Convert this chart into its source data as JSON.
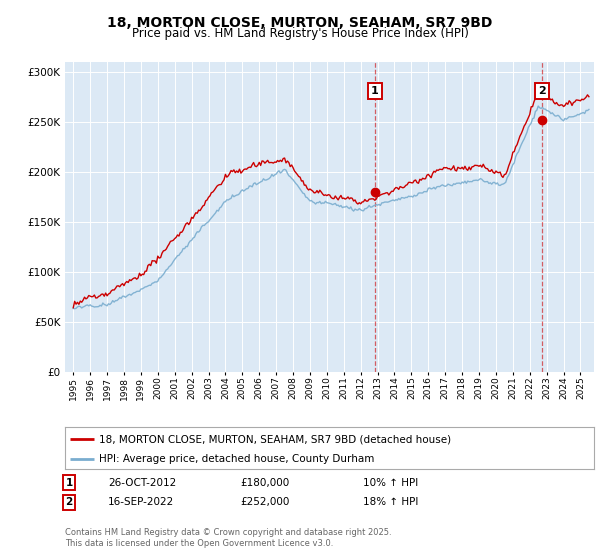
{
  "title": "18, MORTON CLOSE, MURTON, SEAHAM, SR7 9BD",
  "subtitle": "Price paid vs. HM Land Registry's House Price Index (HPI)",
  "legend_line1": "18, MORTON CLOSE, MURTON, SEAHAM, SR7 9BD (detached house)",
  "legend_line2": "HPI: Average price, detached house, County Durham",
  "sale1_date": "26-OCT-2012",
  "sale1_price": "£180,000",
  "sale1_pct": "10% ↑ HPI",
  "sale1_year": 2012.82,
  "sale1_value": 180000,
  "sale2_date": "16-SEP-2022",
  "sale2_price": "£252,000",
  "sale2_pct": "18% ↑ HPI",
  "sale2_year": 2022.71,
  "sale2_value": 252000,
  "ylim": [
    0,
    310000
  ],
  "xlim": [
    1994.5,
    2025.8
  ],
  "bg_color": "#dce9f5",
  "red_color": "#cc0000",
  "blue_color": "#7aadcf",
  "grid_color": "#ffffff",
  "footnote": "Contains HM Land Registry data © Crown copyright and database right 2025.\nThis data is licensed under the Open Government Licence v3.0."
}
